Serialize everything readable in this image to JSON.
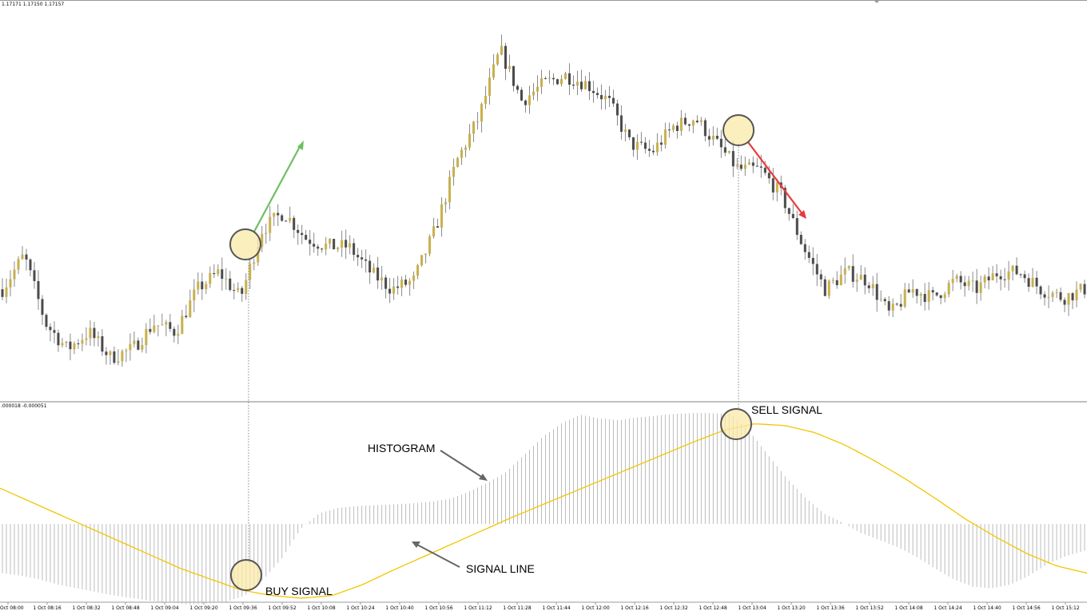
{
  "price_panel": {
    "ohlc_readout": "1.17171 1.17150 1.17157"
  },
  "indicator_panel": {
    "readout": ".000018 -0.000051"
  },
  "annotations": {
    "buy_signal": "BUY SIGNAL",
    "sell_signal": "SELL SIGNAL",
    "histogram": "HISTOGRAM",
    "signal_line": "SIGNAL LINE"
  },
  "colors": {
    "bull_candle": "#c8b04a",
    "bear_candle": "#4a4a4a",
    "wick": "#888888",
    "signal_line": "#f2c500",
    "histogram": "#bcbcbc",
    "buy_arrow": "#6cc060",
    "sell_arrow": "#e83a3a",
    "signal_circle_fill": "#fbe9a8",
    "signal_circle_stroke": "#555555",
    "annotation_arrow": "#666666"
  },
  "chart_data": [
    {
      "type": "candlestick",
      "title": "",
      "price_path": [
        1.1716,
        1.172,
        1.1712,
        1.1709,
        1.1711,
        1.1708,
        1.1709,
        1.1712,
        1.1711,
        1.1716,
        1.1718,
        1.1715,
        1.1723,
        1.1725,
        1.1722,
        1.1721,
        1.1721,
        1.1718,
        1.1716,
        1.1717,
        1.1723,
        1.1731,
        1.1736,
        1.1744,
        1.1738,
        1.174,
        1.1741,
        1.174,
        1.1738,
        1.1733,
        1.1732,
        1.1735,
        1.1736,
        1.1733,
        1.173,
        1.173,
        1.1727,
        1.1721,
        1.1716,
        1.1718,
        1.1717,
        1.1713,
        1.1716,
        1.1715,
        1.1717,
        1.1716,
        1.1718,
        1.1718,
        1.1716,
        1.1715,
        1.1716
      ],
      "x_ticks": [
        "Oct 08:00",
        "1 Oct 08:16",
        "1 Oct 08:32",
        "1 Oct 08:48",
        "1 Oct 09:04",
        "1 Oct 09:20",
        "1 Oct 09:36",
        "1 Oct 09:52",
        "1 Oct 10:08",
        "1 Oct 10:24",
        "1 Oct 10:40",
        "1 Oct 10:56",
        "1 Oct 11:12",
        "1 Oct 11:28",
        "1 Oct 11:44",
        "1 Oct 12:00",
        "1 Oct 12:16",
        "1 Oct 12:32",
        "1 Oct 12:48",
        "1 Oct 13:04",
        "1 Oct 13:20",
        "1 Oct 13:36",
        "1 Oct 13:52",
        "1 Oct 14:08",
        "1 Oct 14:24",
        "1 Oct 14:40",
        "1 Oct 14:56",
        "1 Oct 15:12"
      ],
      "buy_signal_time": "1 Oct 09:36",
      "sell_signal_time": "1 Oct 13:04",
      "grid": false
    },
    {
      "type": "bar",
      "title": "",
      "series": [
        {
          "kind": "histogram",
          "values": [
            -0.55,
            -0.58,
            -0.62,
            -0.68,
            -0.72,
            -0.76,
            -0.8,
            -0.83,
            -0.86,
            -0.88,
            -0.9,
            -0.89,
            -0.87,
            -0.8,
            -0.62,
            -0.38,
            -0.05,
            0.12,
            0.18,
            0.2,
            0.21,
            0.22,
            0.23,
            0.25,
            0.28,
            0.36,
            0.46,
            0.58,
            0.78,
            0.98,
            1.13,
            1.22,
            1.18,
            1.16,
            1.19,
            1.21,
            1.23,
            1.24,
            1.24,
            1.23,
            1.05,
            0.78,
            0.52,
            0.3,
            0.12,
            0.02,
            -0.1,
            -0.18,
            -0.26,
            -0.37,
            -0.5,
            -0.62,
            -0.7,
            -0.72,
            -0.68,
            -0.58,
            -0.45,
            -0.36,
            -0.3
          ]
        },
        {
          "kind": "line",
          "values": [
            0.4,
            0.25,
            0.1,
            -0.05,
            -0.2,
            -0.35,
            -0.5,
            -0.62,
            -0.74,
            -0.8,
            -0.83,
            -0.8,
            -0.68,
            -0.52,
            -0.37,
            -0.22,
            -0.07,
            0.08,
            0.22,
            0.36,
            0.5,
            0.64,
            0.78,
            0.92,
            1.05,
            1.12,
            1.1,
            1.02,
            0.88,
            0.7,
            0.5,
            0.28,
            0.05,
            -0.15,
            -0.33,
            -0.47,
            -0.55
          ]
        }
      ],
      "grid": false
    }
  ]
}
